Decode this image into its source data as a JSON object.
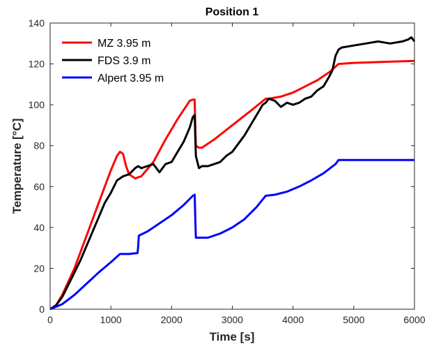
{
  "chart_data": {
    "type": "line",
    "title": "Position 1",
    "xlabel": "Time [s]",
    "ylabel": "Temperature [°C]",
    "xlim": [
      0,
      6000
    ],
    "ylim": [
      0,
      140
    ],
    "xticks": [
      0,
      1000,
      2000,
      3000,
      4000,
      5000,
      6000
    ],
    "yticks": [
      0,
      20,
      40,
      60,
      80,
      100,
      120,
      140
    ],
    "grid": false,
    "legend_position": "top-left",
    "series": [
      {
        "name": "MZ 3.95 m",
        "color": "#ff0000",
        "x": [
          0,
          100,
          200,
          400,
          600,
          800,
          1000,
          1100,
          1150,
          1200,
          1250,
          1300,
          1400,
          1500,
          1700,
          1900,
          2100,
          2300,
          2350,
          2380,
          2390,
          2400,
          2450,
          2500,
          2700,
          3000,
          3300,
          3550,
          3600,
          3800,
          4000,
          4200,
          4400,
          4600,
          4750,
          5000,
          5500,
          6000
        ],
        "y": [
          0,
          2,
          7,
          20,
          36,
          52,
          68,
          75,
          77,
          76,
          70,
          66,
          64,
          65,
          72,
          83,
          93,
          102,
          102.5,
          102.5,
          90,
          80,
          79,
          79,
          83,
          90,
          97,
          103,
          103,
          104,
          106,
          109,
          112,
          116,
          120,
          120.5,
          121,
          121.5
        ]
      },
      {
        "name": "FDS 3.9 m",
        "color": "#000000",
        "x": [
          0,
          100,
          200,
          300,
          400,
          500,
          600,
          700,
          800,
          900,
          1000,
          1100,
          1150,
          1200,
          1300,
          1400,
          1450,
          1500,
          1600,
          1700,
          1800,
          1900,
          2000,
          2100,
          2200,
          2300,
          2350,
          2380,
          2390,
          2400,
          2450,
          2500,
          2600,
          2700,
          2800,
          2900,
          3000,
          3100,
          3200,
          3300,
          3400,
          3500,
          3550,
          3600,
          3700,
          3800,
          3900,
          4000,
          4100,
          4200,
          4300,
          4400,
          4500,
          4600,
          4650,
          4700,
          4750,
          4800,
          5000,
          5200,
          5400,
          5600,
          5800,
          5900,
          5950,
          6000
        ],
        "y": [
          0,
          2,
          6,
          12,
          18,
          24,
          31,
          38,
          45,
          52,
          57,
          63,
          64,
          65,
          66,
          69,
          70,
          69,
          70,
          71,
          67,
          71,
          72,
          77,
          82,
          89,
          94,
          95,
          85,
          75,
          69,
          70,
          70,
          71,
          72,
          75,
          77,
          81,
          85,
          90,
          95,
          100,
          101,
          103,
          102,
          99,
          101,
          100,
          101,
          103,
          104,
          107,
          109,
          114,
          117,
          124,
          127,
          128,
          129,
          130,
          131,
          130,
          131,
          132,
          133,
          131
        ]
      },
      {
        "name": "Alpert 3.95 m",
        "color": "#0000ff",
        "x": [
          0,
          200,
          400,
          600,
          800,
          1000,
          1150,
          1300,
          1440,
          1450,
          1460,
          1600,
          1800,
          2000,
          2200,
          2350,
          2380,
          2390,
          2400,
          2600,
          2800,
          3000,
          3200,
          3400,
          3550,
          3700,
          3900,
          4100,
          4300,
          4500,
          4700,
          4750,
          5000,
          5500,
          6000
        ],
        "y": [
          0,
          2.5,
          7,
          12.5,
          18,
          23,
          27,
          27,
          27.5,
          31,
          36,
          38,
          42,
          46,
          51,
          55.5,
          56,
          45,
          35,
          35,
          37,
          40,
          44,
          50,
          55.5,
          56,
          57.5,
          60,
          63,
          66.5,
          71,
          73,
          73,
          73,
          73
        ]
      }
    ]
  }
}
